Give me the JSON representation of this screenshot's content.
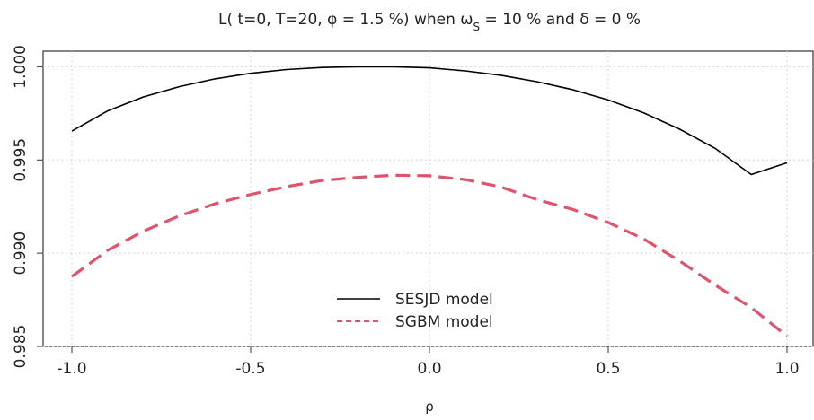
{
  "chart_data": {
    "type": "line",
    "title": "L( t=0,  T=20, φ = 1.5 %) when  ω",
    "title_subscript": "S",
    "title_suffix": " = 10 % and δ = 0 %",
    "xlabel": "ρ",
    "ylabel": "",
    "xlim": [
      -1.0,
      1.0
    ],
    "ylim": [
      0.985,
      1.0005
    ],
    "xticks": [
      -1.0,
      -0.5,
      0.0,
      0.5,
      1.0
    ],
    "xtick_labels": [
      "-1.0",
      "-0.5",
      "0.0",
      "0.5",
      "1.0"
    ],
    "yticks": [
      0.985,
      0.99,
      0.995,
      1.0
    ],
    "ytick_labels": [
      "0.985",
      "0.990",
      "0.995",
      "1.000"
    ],
    "grid": true,
    "legend_position": "bottom-center",
    "x": [
      -1.0,
      -0.9,
      -0.8,
      -0.7,
      -0.6,
      -0.5,
      -0.4,
      -0.3,
      -0.2,
      -0.1,
      0.0,
      0.1,
      0.2,
      0.3,
      0.4,
      0.5,
      0.6,
      0.7,
      0.8,
      0.9,
      1.0
    ],
    "series": [
      {
        "name": "SESJD model",
        "color": "#000000",
        "dash": "solid",
        "values": [
          0.99655,
          0.99763,
          0.99838,
          0.99893,
          0.99935,
          0.99965,
          0.99985,
          0.99996,
          1.0,
          1.0,
          0.99994,
          0.99978,
          0.99954,
          0.9992,
          0.99877,
          0.99822,
          0.99752,
          0.99665,
          0.99561,
          0.99422,
          0.99485
        ]
      },
      {
        "name": "SGBM model",
        "color": "#df536b",
        "dash": "dashed",
        "values": [
          0.98875,
          0.99015,
          0.99118,
          0.992,
          0.99265,
          0.99315,
          0.99357,
          0.9939,
          0.99407,
          0.99418,
          0.99415,
          0.99395,
          0.99355,
          0.99288,
          0.99235,
          0.99165,
          0.99075,
          0.98958,
          0.98828,
          0.98708,
          0.98555
        ]
      }
    ]
  }
}
